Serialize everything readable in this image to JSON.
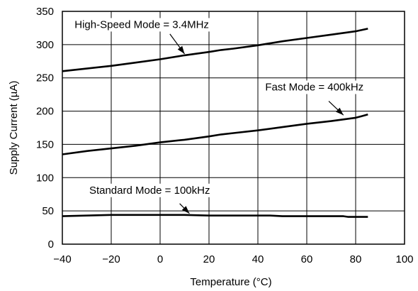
{
  "chart_data": {
    "type": "line",
    "title": "",
    "xlabel": "Temperature (°C)",
    "ylabel": "Supply Current (µA)",
    "xlim": [
      -40,
      100
    ],
    "ylim": [
      0,
      350
    ],
    "xticks": [
      -40,
      -20,
      0,
      20,
      40,
      60,
      80,
      100
    ],
    "yticks": [
      0,
      50,
      100,
      150,
      200,
      250,
      300,
      350
    ],
    "xtick_labels": [
      "−40",
      "−20",
      "0",
      "20",
      "40",
      "60",
      "80",
      "100"
    ],
    "ytick_labels": [
      "0",
      "50",
      "100",
      "150",
      "200",
      "250",
      "300",
      "350"
    ],
    "grid": true,
    "legend": "none",
    "series": [
      {
        "name": "High-Speed Mode = 3.4MHz",
        "x": [
          -40,
          -30,
          -20,
          -10,
          0,
          10,
          20,
          25,
          30,
          40,
          50,
          60,
          70,
          80,
          85
        ],
        "y": [
          260,
          264,
          268,
          273,
          278,
          284,
          289,
          292,
          294,
          299,
          305,
          310,
          315,
          320,
          324
        ]
      },
      {
        "name": "Fast Mode = 400kHz",
        "x": [
          -40,
          -30,
          -20,
          -10,
          0,
          10,
          20,
          25,
          30,
          40,
          50,
          60,
          70,
          80,
          82,
          85
        ],
        "y": [
          135,
          140,
          144,
          148,
          153,
          157,
          162,
          165,
          167,
          171,
          176,
          181,
          185,
          190,
          192,
          195
        ]
      },
      {
        "name": "Standard Mode = 100kHz",
        "x": [
          -40,
          -30,
          -20,
          -10,
          0,
          10,
          20,
          30,
          40,
          45,
          50,
          60,
          70,
          75,
          77,
          80,
          85
        ],
        "y": [
          42,
          43,
          44,
          44,
          44,
          44,
          43,
          43,
          43,
          43,
          42,
          42,
          42,
          42,
          41,
          41,
          41
        ]
      }
    ],
    "annotations": [
      {
        "text": "High-Speed Mode = 3.4MHz",
        "label_x": -35,
        "label_y": 325,
        "arrow_from": [
          4,
          316
        ],
        "arrow_to": [
          10,
          286
        ]
      },
      {
        "text": "Fast Mode = 400kHz",
        "label_x": 43,
        "label_y": 231,
        "arrow_from": [
          69,
          215
        ],
        "arrow_to": [
          75,
          194
        ]
      },
      {
        "text": "Standard Mode = 100kHz",
        "label_x": -29,
        "label_y": 76,
        "arrow_from": [
          8,
          61
        ],
        "arrow_to": [
          12,
          46
        ]
      }
    ]
  }
}
